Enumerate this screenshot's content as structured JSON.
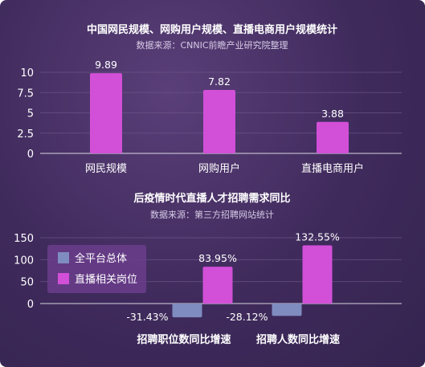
{
  "colors": {
    "background": "#3f2a5c",
    "primary_bar": "#d24fd8",
    "secondary_bar": "#7f8cc0",
    "legend_box": "#6b3d8c",
    "gridline": "#6c5587"
  },
  "chart_data": [
    {
      "type": "bar",
      "title": "中国网民规模、网购用户规模、直播电商用户规模统计",
      "subtitle": "数据来源：CNNIC前瞻产业研究院整理",
      "categories": [
        "网民规模",
        "网购用户",
        "直播电商用户"
      ],
      "values": [
        9.89,
        7.82,
        3.88
      ],
      "value_labels": [
        "9.89",
        "7.82",
        "3.88"
      ],
      "y_ticks": [
        "10",
        "7.5",
        "5",
        "2.5",
        "0"
      ],
      "ylim": [
        0,
        10
      ],
      "grid": true
    },
    {
      "type": "bar",
      "title": "后疫情时代直播人才招聘需求同比",
      "subtitle": "数据来源：第三方招聘网站统计",
      "categories": [
        "招聘职位数同比增速",
        "招聘人数同比增速"
      ],
      "series": [
        {
          "name": "全平台总体",
          "values": [
            -31.43,
            -28.12
          ],
          "labels": [
            "-31.43%",
            "-28.12%"
          ],
          "color": "#7f8cc0"
        },
        {
          "name": "直播相关岗位",
          "values": [
            83.95,
            132.55
          ],
          "labels": [
            "83.95%",
            "132.55%"
          ],
          "color": "#d24fd8"
        }
      ],
      "y_ticks": [
        "150",
        "100",
        "50",
        "0"
      ],
      "ylim": [
        -40,
        150
      ],
      "grid": true,
      "legend_position": "left"
    }
  ]
}
